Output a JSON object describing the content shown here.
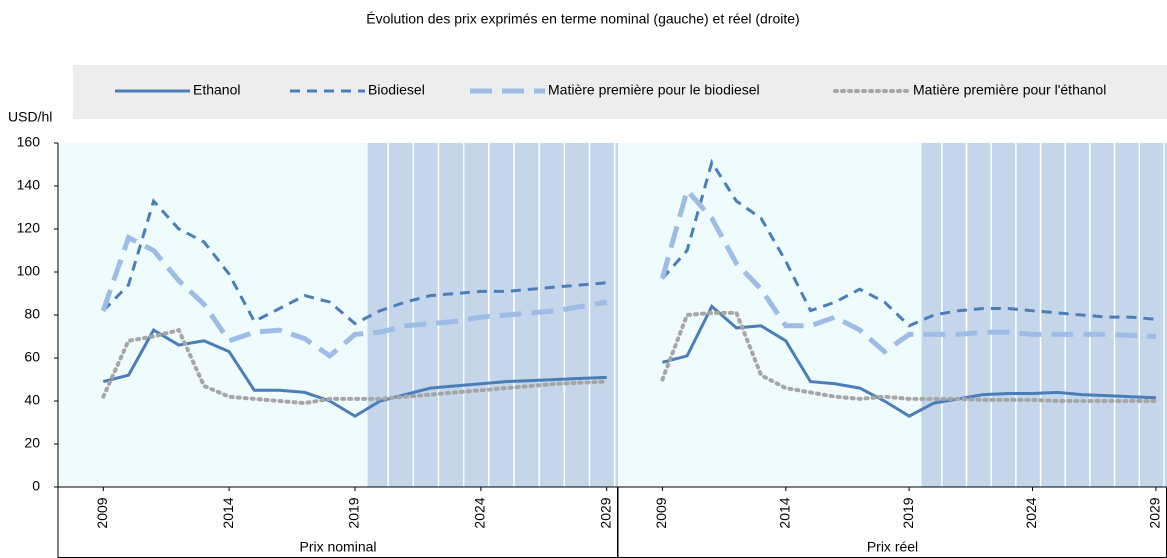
{
  "chart_data": {
    "type": "line",
    "title": "Évolution des prix exprimés en terme nominal (gauche) et réel (droite)",
    "y_label": "USD/hl",
    "ylim": [
      0,
      160
    ],
    "yticks": [
      0,
      20,
      40,
      60,
      80,
      100,
      120,
      140,
      160
    ],
    "xlim": [
      2007.2,
      2029.45
    ],
    "xticks": [
      2009,
      2014,
      2019,
      2024,
      2029
    ],
    "shade_from": 2019.5,
    "panels": [
      {
        "label": "Prix nominal"
      },
      {
        "label": "Prix réel"
      }
    ],
    "x": [
      2009,
      2010,
      2011,
      2012,
      2013,
      2014,
      2015,
      2016,
      2017,
      2018,
      2019,
      2020,
      2021,
      2022,
      2023,
      2024,
      2025,
      2026,
      2027,
      2028,
      2029
    ],
    "series": [
      {
        "name": "Ethanol",
        "color": "#4a7ebb",
        "style": "solid",
        "values": [
          [
            49,
            52,
            73,
            66,
            68,
            63,
            45,
            45,
            44,
            40,
            33,
            40,
            43,
            46,
            47,
            48,
            49,
            49.5,
            50,
            50.5,
            51
          ],
          [
            58,
            61,
            84,
            74,
            75,
            68,
            49,
            48,
            46,
            40,
            33,
            39,
            41,
            43,
            43.5,
            43.5,
            44,
            43,
            42.5,
            42,
            41.5
          ]
        ]
      },
      {
        "name": "Biodiesel",
        "color": "#4a7ebb",
        "style": "dashed",
        "values": [
          [
            82,
            94,
            133,
            120,
            114,
            99,
            77,
            83,
            89,
            86,
            76,
            82,
            86,
            89,
            90,
            91,
            91,
            92,
            93,
            94,
            95
          ],
          [
            97,
            110,
            151,
            133,
            125,
            105,
            82,
            86,
            92,
            86,
            75,
            80,
            82,
            83,
            83,
            82,
            81,
            80,
            79,
            79,
            78
          ]
        ]
      },
      {
        "name": "Matière première pour le biodiesel",
        "color": "#9dbde6",
        "style": "long-dashed",
        "values": [
          [
            82,
            116,
            110,
            96,
            85,
            68,
            72,
            73,
            69,
            61,
            71,
            72,
            75,
            76,
            77,
            79,
            80,
            81,
            82,
            84,
            86
          ],
          [
            97,
            138,
            125,
            104,
            92,
            75,
            75,
            79,
            73,
            63,
            71,
            71,
            71,
            72,
            72,
            71,
            71,
            71,
            71,
            70.5,
            70
          ]
        ]
      },
      {
        "name": "Matière première pour l'éthanol",
        "color": "#a6a6a6",
        "style": "dotted",
        "values": [
          [
            42,
            68,
            70,
            73,
            47,
            42,
            41,
            40,
            39,
            41,
            41,
            41,
            42,
            43,
            44,
            45,
            46,
            47,
            48,
            48.5,
            49
          ],
          [
            50,
            80,
            81,
            81,
            52,
            46,
            44,
            42,
            41,
            42,
            41,
            41,
            41,
            40.5,
            40.5,
            40.5,
            40,
            40,
            40,
            40,
            40
          ]
        ]
      }
    ]
  }
}
